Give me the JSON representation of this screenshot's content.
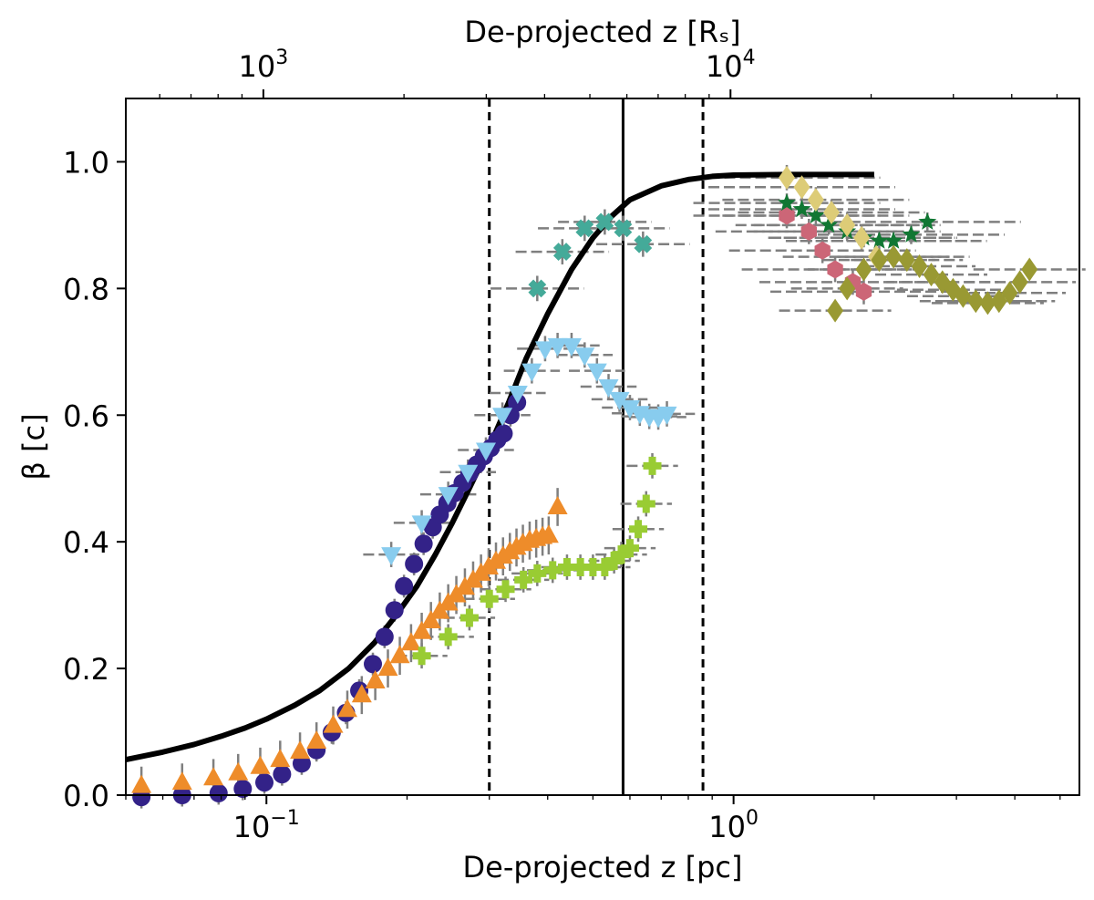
{
  "chart_data": {
    "type": "scatter",
    "xscale": "log",
    "xlim": [
      0.05,
      5.5
    ],
    "ylim": [
      0.0,
      1.1
    ],
    "xlabel": "De-projected z [pc]",
    "ylabel": "β [c]",
    "top_xlabel": "De-projected z [Rₛ]",
    "x_ticks": [
      {
        "value": 0.1,
        "mantissa": "10",
        "exp": "−1"
      },
      {
        "value": 1.0,
        "mantissa": "10",
        "exp": "0"
      }
    ],
    "y_ticks": [
      {
        "value": 0.0,
        "label": "0.0"
      },
      {
        "value": 0.2,
        "label": "0.2"
      },
      {
        "value": 0.4,
        "label": "0.4"
      },
      {
        "value": 0.6,
        "label": "0.6"
      },
      {
        "value": 0.8,
        "label": "0.8"
      },
      {
        "value": 1.0,
        "label": "1.0"
      }
    ],
    "top_ticks": [
      {
        "x_pc": 0.0985,
        "mantissa": "10",
        "exp": "3"
      },
      {
        "x_pc": 0.985,
        "mantissa": "10",
        "exp": "4"
      }
    ],
    "vlines": [
      {
        "x": 0.3,
        "style": "dashed"
      },
      {
        "x": 0.58,
        "style": "solid"
      },
      {
        "x": 0.86,
        "style": "dashed"
      }
    ],
    "model_curve": {
      "name": "model",
      "x": [
        0.05,
        0.06,
        0.07,
        0.08,
        0.09,
        0.1,
        0.115,
        0.13,
        0.15,
        0.17,
        0.19,
        0.21,
        0.23,
        0.25,
        0.27,
        0.3,
        0.33,
        0.36,
        0.4,
        0.45,
        0.5,
        0.55,
        0.6,
        0.7,
        0.8,
        0.9,
        1.0,
        1.3,
        1.6,
        2.0
      ],
      "y": [
        0.056,
        0.068,
        0.08,
        0.093,
        0.106,
        0.12,
        0.142,
        0.165,
        0.2,
        0.24,
        0.285,
        0.33,
        0.38,
        0.43,
        0.48,
        0.55,
        0.62,
        0.69,
        0.76,
        0.83,
        0.88,
        0.915,
        0.94,
        0.962,
        0.972,
        0.977,
        0.979,
        0.98,
        0.98,
        0.98
      ]
    },
    "series": [
      {
        "name": "navy circles",
        "color": "#332288",
        "marker": "circle",
        "x": [
          0.054,
          0.066,
          0.079,
          0.089,
          0.099,
          0.108,
          0.119,
          0.128,
          0.138,
          0.148,
          0.158,
          0.169,
          0.179,
          0.188,
          0.197,
          0.207,
          0.217,
          0.227,
          0.235,
          0.244,
          0.253,
          0.263,
          0.272,
          0.282,
          0.292,
          0.302,
          0.312,
          0.322,
          0.333,
          0.344
        ],
        "y": [
          -0.003,
          0.0,
          0.003,
          0.01,
          0.02,
          0.033,
          0.05,
          0.071,
          0.099,
          0.13,
          0.165,
          0.207,
          0.25,
          0.292,
          0.33,
          0.365,
          0.397,
          0.423,
          0.443,
          0.461,
          0.477,
          0.493,
          0.508,
          0.522,
          0.535,
          0.548,
          0.561,
          0.571,
          0.6,
          0.62
        ],
        "xerr": 0,
        "yerr": 0.018
      },
      {
        "name": "orange triangles",
        "color": "#EE8C2A",
        "marker": "triangle-up",
        "x": [
          0.054,
          0.066,
          0.077,
          0.087,
          0.097,
          0.107,
          0.118,
          0.128,
          0.139,
          0.149,
          0.16,
          0.171,
          0.182,
          0.193,
          0.204,
          0.215,
          0.225,
          0.235,
          0.245,
          0.255,
          0.266,
          0.277,
          0.288,
          0.299,
          0.31,
          0.321,
          0.332,
          0.343,
          0.354,
          0.366,
          0.378,
          0.39,
          0.402,
          0.42
        ],
        "y": [
          0.015,
          0.02,
          0.027,
          0.035,
          0.045,
          0.056,
          0.069,
          0.085,
          0.11,
          0.135,
          0.158,
          0.18,
          0.2,
          0.22,
          0.24,
          0.258,
          0.275,
          0.29,
          0.303,
          0.316,
          0.328,
          0.339,
          0.35,
          0.36,
          0.369,
          0.377,
          0.384,
          0.391,
          0.397,
          0.402,
          0.405,
          0.408,
          0.41,
          0.455
        ],
        "xerr": 0,
        "yerr": 0.03
      },
      {
        "name": "sky-blue down-triangles",
        "color": "#88CCEE",
        "marker": "triangle-down",
        "x": [
          0.185,
          0.215,
          0.245,
          0.27,
          0.295,
          0.32,
          0.345,
          0.37,
          0.395,
          0.42,
          0.45,
          0.48,
          0.51,
          0.54,
          0.57,
          0.6,
          0.63,
          0.66,
          0.69,
          0.72
        ],
        "y": [
          0.38,
          0.43,
          0.475,
          0.51,
          0.545,
          0.6,
          0.635,
          0.67,
          0.705,
          0.71,
          0.71,
          0.695,
          0.67,
          0.645,
          0.625,
          0.612,
          0.603,
          0.598,
          0.597,
          0.602
        ],
        "xerr": 0.06,
        "yerr": 0.02
      },
      {
        "name": "lime crosses",
        "color": "#99CC33",
        "marker": "plus",
        "x": [
          0.215,
          0.245,
          0.272,
          0.3,
          0.325,
          0.355,
          0.38,
          0.41,
          0.44,
          0.47,
          0.5,
          0.53,
          0.555,
          0.575,
          0.6,
          0.625,
          0.65,
          0.67
        ],
        "y": [
          0.22,
          0.25,
          0.28,
          0.31,
          0.325,
          0.34,
          0.35,
          0.355,
          0.36,
          0.36,
          0.36,
          0.36,
          0.37,
          0.38,
          0.39,
          0.42,
          0.46,
          0.52
        ],
        "xerr": 0.055,
        "yerr": 0.02
      },
      {
        "name": "teal X",
        "color": "#44AA99",
        "marker": "x-mark",
        "x": [
          0.38,
          0.43,
          0.48,
          0.53,
          0.58,
          0.64
        ],
        "y": [
          0.8,
          0.858,
          0.895,
          0.905,
          0.895,
          0.87
        ],
        "xerr": 0.1,
        "yerr": 0.02
      },
      {
        "name": "rose hexagons",
        "color": "#CC6677",
        "marker": "hexagon",
        "x": [
          1.3,
          1.45,
          1.55,
          1.65,
          1.8,
          1.9
        ],
        "y": [
          0.915,
          0.89,
          0.86,
          0.83,
          0.81,
          0.795
        ],
        "xerr": 0.2,
        "yerr": 0.02
      },
      {
        "name": "green stars",
        "color": "#117733",
        "marker": "star",
        "x": [
          1.3,
          1.4,
          1.5,
          1.6,
          1.75,
          1.9,
          2.05,
          2.2,
          2.4,
          2.6
        ],
        "y": [
          0.935,
          0.925,
          0.915,
          0.9,
          0.89,
          0.88,
          0.875,
          0.875,
          0.885,
          0.905
        ],
        "xerr": 0.2,
        "yerr": 0.015
      },
      {
        "name": "sand diamonds",
        "color": "#DDCC77",
        "marker": "diamond",
        "x": [
          1.3,
          1.4,
          1.5,
          1.62,
          1.75,
          1.88,
          2.02
        ],
        "y": [
          0.975,
          0.96,
          0.94,
          0.92,
          0.9,
          0.88,
          0.85
        ],
        "xerr": 0.2,
        "yerr": 0.02
      },
      {
        "name": "olive diamonds",
        "color": "#999933",
        "marker": "diamond",
        "x": [
          1.65,
          1.75,
          1.9,
          2.05,
          2.2,
          2.35,
          2.5,
          2.65,
          2.8,
          2.95,
          3.1,
          3.3,
          3.5,
          3.7,
          3.9,
          4.1,
          4.3
        ],
        "y": [
          0.765,
          0.8,
          0.83,
          0.845,
          0.85,
          0.845,
          0.835,
          0.822,
          0.81,
          0.798,
          0.788,
          0.78,
          0.777,
          0.78,
          0.793,
          0.81,
          0.83
        ],
        "xerr": 0.12,
        "yerr": 0.012
      }
    ]
  }
}
